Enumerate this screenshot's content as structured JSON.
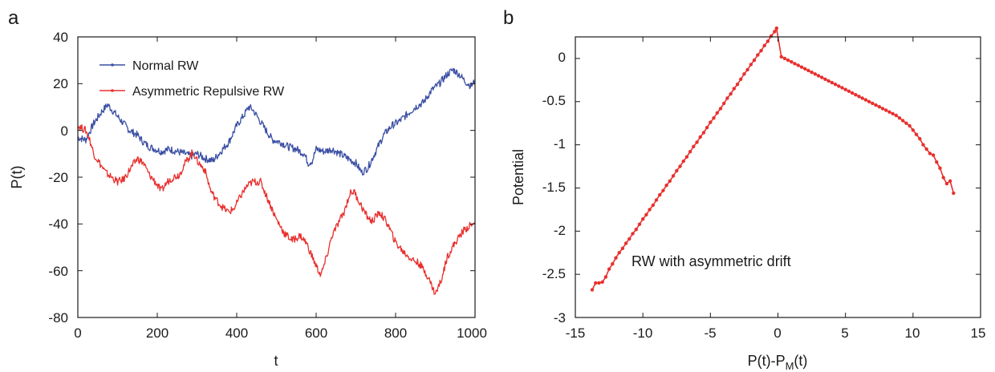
{
  "panel_a": {
    "letter": "a",
    "xlabel": "t",
    "ylabel": "P(t)",
    "xticks": [
      "0",
      "200",
      "400",
      "600",
      "800",
      "1000"
    ],
    "yticks": [
      "40",
      "20",
      "0",
      "-20",
      "-40",
      "-60",
      "-80"
    ],
    "legend": [
      "Normal RW",
      "Asymmetric Repulsive RW"
    ]
  },
  "panel_b": {
    "letter": "b",
    "xlabel_main": "P(t)-P",
    "xlabel_sub": "M",
    "xlabel_tail": "(t)",
    "ylabel": "Potential",
    "xticks": [
      "-15",
      "-10",
      "-5",
      "0",
      "5",
      "10",
      "15"
    ],
    "yticks": [
      "0",
      "-0.5",
      "-1",
      "-1.5",
      "-2",
      "-2.5",
      "-3"
    ],
    "annotation": "RW with asymmetric drift"
  },
  "colors": {
    "normal": "#3a4ea3",
    "asym": "#e8302e",
    "axis": "#1a1a1a"
  },
  "chart_data": [
    {
      "type": "line",
      "xlabel": "t",
      "ylabel": "P(t)",
      "xlim": [
        0,
        1000
      ],
      "ylim": [
        -80,
        40
      ],
      "grid": false,
      "legend_position": "top-left",
      "series": [
        {
          "name": "Normal RW",
          "color": "#3a4ea3",
          "x": [
            0,
            20,
            40,
            60,
            75,
            90,
            110,
            130,
            150,
            165,
            180,
            195,
            210,
            230,
            250,
            270,
            285,
            300,
            320,
            340,
            360,
            380,
            400,
            420,
            430,
            440,
            455,
            470,
            490,
            510,
            530,
            550,
            570,
            580,
            590,
            600,
            620,
            640,
            660,
            680,
            700,
            715,
            730,
            750,
            770,
            790,
            810,
            830,
            850,
            870,
            890,
            910,
            930,
            945,
            960,
            975,
            990,
            1000
          ],
          "y": [
            -3,
            -4,
            3,
            8,
            11,
            8,
            4,
            0,
            -2,
            -5,
            -7,
            -8,
            -9,
            -8,
            -9,
            -10,
            -11,
            -10,
            -12,
            -13,
            -9,
            -5,
            2,
            7,
            10,
            9,
            5,
            1,
            -4,
            -5,
            -7,
            -8,
            -10,
            -14,
            -13,
            -8,
            -9,
            -8,
            -10,
            -12,
            -14,
            -18,
            -16,
            -9,
            -2,
            2,
            4,
            7,
            10,
            12,
            17,
            20,
            24,
            26,
            24,
            21,
            19,
            21
          ]
        },
        {
          "name": "Asymmetric Repulsive RW",
          "color": "#e8302e",
          "x": [
            0,
            10,
            20,
            30,
            40,
            55,
            70,
            85,
            100,
            115,
            130,
            150,
            165,
            180,
            195,
            210,
            225,
            240,
            255,
            270,
            290,
            300,
            320,
            335,
            350,
            365,
            380,
            395,
            410,
            425,
            440,
            460,
            480,
            500,
            520,
            540,
            560,
            575,
            590,
            600,
            612,
            625,
            640,
            655,
            670,
            685,
            695,
            710,
            725,
            740,
            760,
            780,
            800,
            820,
            840,
            860,
            880,
            900,
            915,
            930,
            950,
            970,
            985,
            1000
          ],
          "y": [
            2,
            1,
            0,
            -4,
            -10,
            -14,
            -18,
            -20,
            -22,
            -21,
            -17,
            -12,
            -14,
            -19,
            -22,
            -26,
            -22,
            -20,
            -19,
            -14,
            -9,
            -13,
            -17,
            -26,
            -30,
            -33,
            -35,
            -33,
            -28,
            -24,
            -22,
            -22,
            -30,
            -38,
            -44,
            -47,
            -45,
            -48,
            -54,
            -58,
            -62,
            -55,
            -45,
            -40,
            -35,
            -27,
            -26,
            -31,
            -36,
            -39,
            -35,
            -40,
            -48,
            -52,
            -55,
            -57,
            -62,
            -70,
            -64,
            -54,
            -48,
            -43,
            -41,
            -40
          ]
        }
      ]
    },
    {
      "type": "line",
      "xlabel": "P(t)-PM(t)",
      "ylabel": "Potential",
      "xlim": [
        -15,
        15
      ],
      "ylim": [
        -3,
        0.25
      ],
      "grid": false,
      "annotation": "RW with asymmetric drift",
      "series": [
        {
          "color": "#e8302e",
          "markers": true,
          "x": [
            -13.75,
            -13.5,
            -13.25,
            -13.0,
            -12.75,
            -12.5,
            -12.25,
            -12.0,
            -11.75,
            -11.5,
            -11.25,
            -11.0,
            -10.75,
            -10.5,
            -10.25,
            -10.0,
            -9.75,
            -9.5,
            -9.25,
            -9.0,
            -8.75,
            -8.5,
            -8.25,
            -8.0,
            -7.75,
            -7.5,
            -7.25,
            -7.0,
            -6.75,
            -6.5,
            -6.25,
            -6.0,
            -5.75,
            -5.5,
            -5.25,
            -5.0,
            -4.75,
            -4.5,
            -4.25,
            -4.0,
            -3.75,
            -3.5,
            -3.25,
            -3.0,
            -2.75,
            -2.5,
            -2.25,
            -2.0,
            -1.75,
            -1.5,
            -1.25,
            -1.0,
            -0.75,
            -0.5,
            -0.25,
            -0.1,
            0.25,
            0.5,
            0.75,
            1.0,
            1.25,
            1.5,
            1.75,
            2.0,
            2.25,
            2.5,
            2.75,
            3.0,
            3.25,
            3.5,
            3.75,
            4.0,
            4.25,
            4.5,
            4.75,
            5.0,
            5.25,
            5.5,
            5.75,
            6.0,
            6.25,
            6.5,
            6.75,
            7.0,
            7.25,
            7.5,
            7.75,
            8.0,
            8.25,
            8.5,
            8.75,
            9.0,
            9.25,
            9.5,
            9.75,
            10.0,
            10.25,
            10.5,
            10.75,
            11.0,
            11.25,
            11.5,
            11.75,
            12.0,
            12.25,
            12.5,
            12.75,
            13.0
          ],
          "y": [
            -2.68,
            -2.6,
            -2.6,
            -2.59,
            -2.53,
            -2.44,
            -2.38,
            -2.31,
            -2.25,
            -2.2,
            -2.14,
            -2.09,
            -2.03,
            -1.98,
            -1.92,
            -1.86,
            -1.81,
            -1.75,
            -1.7,
            -1.64,
            -1.58,
            -1.53,
            -1.47,
            -1.42,
            -1.36,
            -1.3,
            -1.25,
            -1.19,
            -1.14,
            -1.08,
            -1.02,
            -0.97,
            -0.91,
            -0.86,
            -0.8,
            -0.74,
            -0.69,
            -0.63,
            -0.58,
            -0.52,
            -0.46,
            -0.41,
            -0.35,
            -0.3,
            -0.24,
            -0.18,
            -0.13,
            -0.07,
            -0.02,
            0.04,
            0.09,
            0.15,
            0.2,
            0.26,
            0.31,
            0.35,
            0.02,
            0.0,
            -0.02,
            -0.04,
            -0.06,
            -0.08,
            -0.1,
            -0.12,
            -0.14,
            -0.16,
            -0.18,
            -0.2,
            -0.22,
            -0.24,
            -0.26,
            -0.28,
            -0.3,
            -0.32,
            -0.34,
            -0.36,
            -0.38,
            -0.4,
            -0.42,
            -0.44,
            -0.46,
            -0.48,
            -0.5,
            -0.52,
            -0.54,
            -0.56,
            -0.58,
            -0.6,
            -0.62,
            -0.64,
            -0.66,
            -0.69,
            -0.72,
            -0.75,
            -0.78,
            -0.83,
            -0.88,
            -0.93,
            -1.0,
            -1.05,
            -1.1,
            -1.12,
            -1.2,
            -1.27,
            -1.38,
            -1.45,
            -1.42,
            -1.56
          ]
        }
      ]
    }
  ]
}
